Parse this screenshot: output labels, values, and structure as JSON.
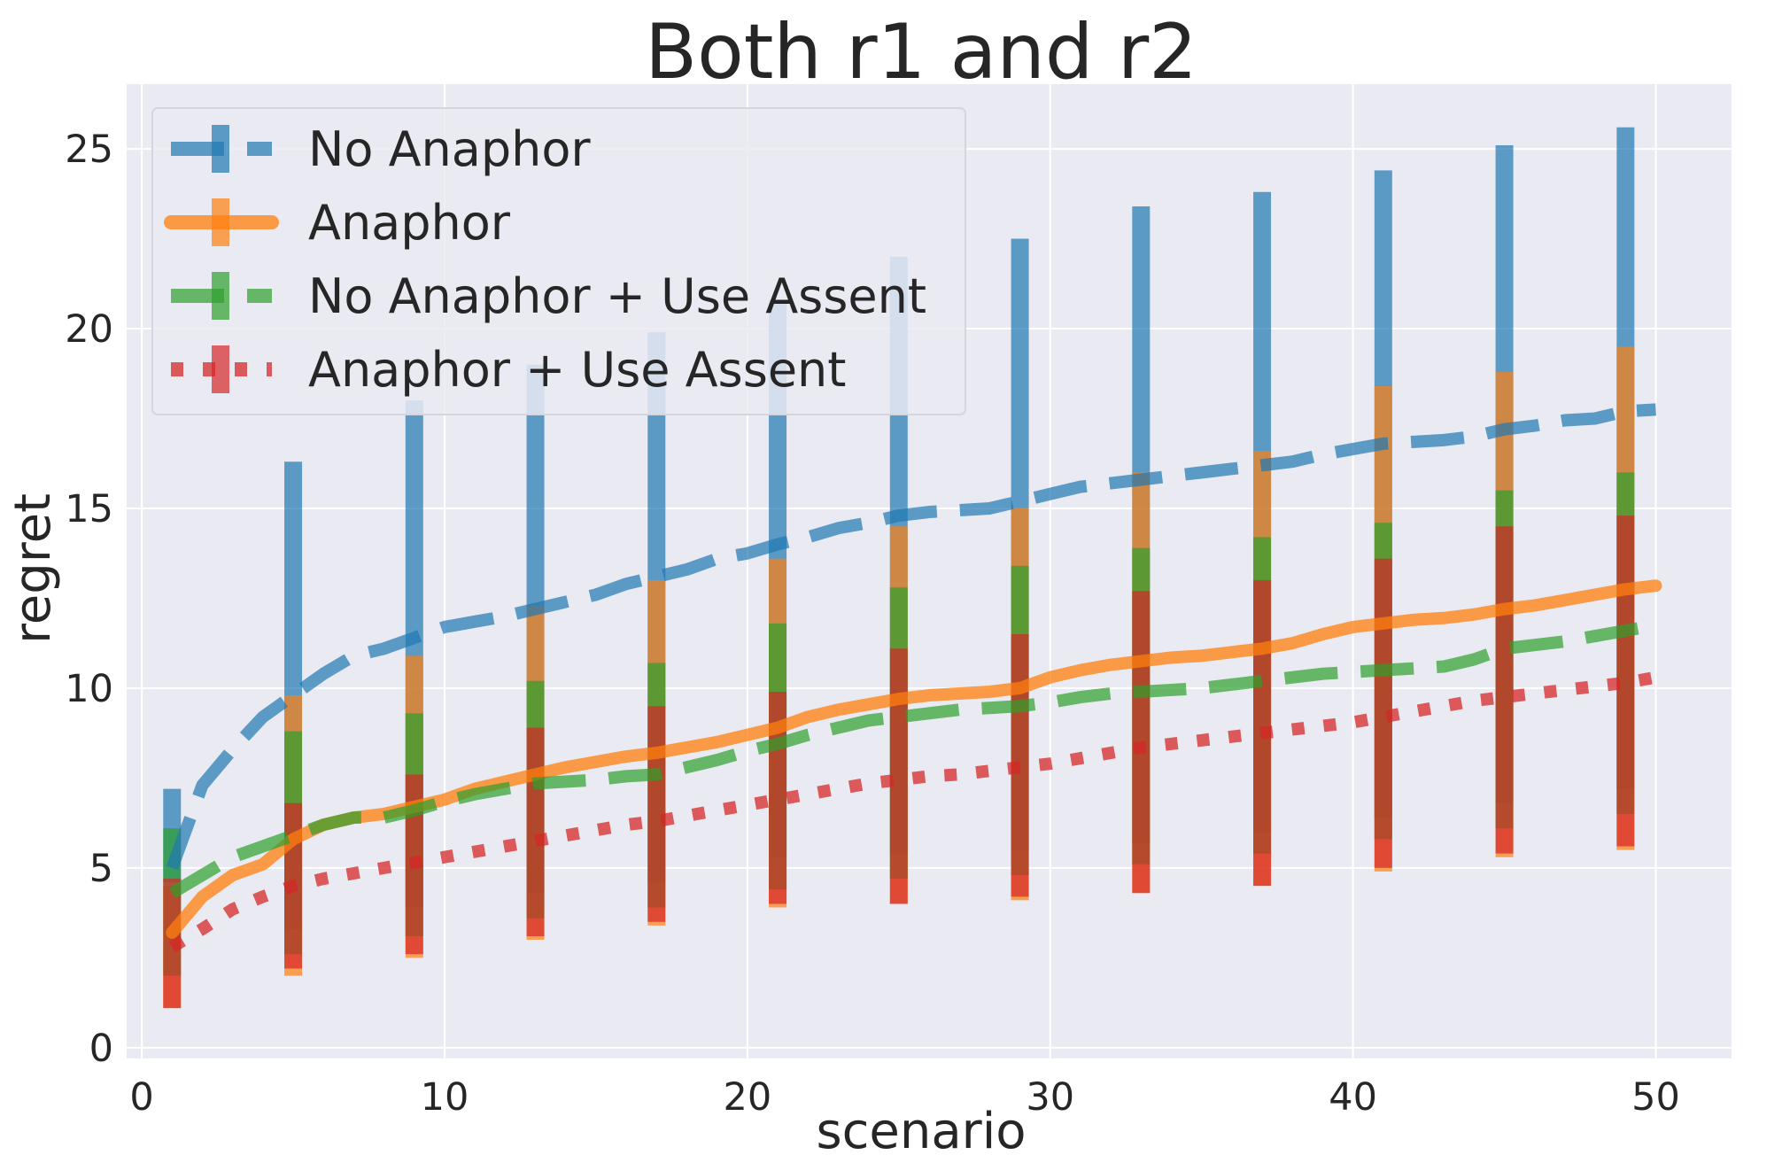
{
  "chart_data": {
    "type": "line",
    "title": "Both r1 and r2",
    "xlabel": "scenario",
    "ylabel": "regret",
    "xlim": [
      -0.5,
      52.5
    ],
    "ylim": [
      -0.3,
      26.8
    ],
    "xticks": [
      0,
      10,
      20,
      30,
      40,
      50
    ],
    "yticks": [
      0,
      5,
      10,
      15,
      20,
      25
    ],
    "grid": true,
    "legend_position": "top-left",
    "series": [
      {
        "name": "No Anaphor",
        "color": "#1f77b4",
        "linestyle": "dashed",
        "x": [
          1,
          2,
          3,
          4,
          5,
          6,
          7,
          8,
          9,
          10,
          11,
          12,
          13,
          14,
          15,
          16,
          17,
          18,
          19,
          20,
          21,
          22,
          23,
          24,
          25,
          26,
          27,
          28,
          29,
          30,
          31,
          32,
          33,
          34,
          35,
          36,
          37,
          38,
          39,
          40,
          41,
          42,
          43,
          44,
          45,
          46,
          47,
          48,
          49,
          50
        ],
        "y": [
          5.0,
          7.3,
          8.3,
          9.2,
          9.8,
          10.4,
          10.9,
          11.1,
          11.4,
          11.7,
          11.85,
          12.0,
          12.2,
          12.4,
          12.6,
          12.9,
          13.1,
          13.3,
          13.6,
          13.75,
          14.0,
          14.2,
          14.45,
          14.6,
          14.8,
          14.9,
          14.95,
          15.0,
          15.2,
          15.4,
          15.6,
          15.7,
          15.8,
          15.9,
          16.0,
          16.1,
          16.2,
          16.3,
          16.5,
          16.65,
          16.8,
          16.85,
          16.9,
          17.0,
          17.2,
          17.3,
          17.45,
          17.5,
          17.7,
          17.75
        ],
        "error_x": [
          1,
          5,
          9,
          13,
          17,
          21,
          25,
          29,
          33,
          37,
          41,
          45,
          49
        ],
        "error_low": [
          4.6,
          3.3,
          3.9,
          4.3,
          4.6,
          5.3,
          5.4,
          5.5,
          5.7,
          6.0,
          6.4,
          6.8,
          7.2
        ],
        "error_high": [
          7.2,
          16.3,
          18.0,
          19.0,
          19.9,
          20.8,
          22.0,
          22.5,
          23.4,
          23.8,
          24.4,
          25.1,
          25.6
        ]
      },
      {
        "name": "Anaphor",
        "color": "#ff7f0e",
        "linestyle": "solid",
        "x": [
          1,
          2,
          3,
          4,
          5,
          6,
          7,
          8,
          9,
          10,
          11,
          12,
          13,
          14,
          15,
          16,
          17,
          18,
          19,
          20,
          21,
          22,
          23,
          24,
          25,
          26,
          27,
          28,
          29,
          30,
          31,
          32,
          33,
          34,
          35,
          36,
          37,
          38,
          39,
          40,
          41,
          42,
          43,
          44,
          45,
          46,
          47,
          48,
          49,
          50
        ],
        "y": [
          3.2,
          4.2,
          4.8,
          5.1,
          5.8,
          6.2,
          6.4,
          6.5,
          6.7,
          6.9,
          7.2,
          7.4,
          7.6,
          7.8,
          7.95,
          8.1,
          8.2,
          8.35,
          8.5,
          8.7,
          8.9,
          9.2,
          9.4,
          9.55,
          9.7,
          9.8,
          9.85,
          9.9,
          10.0,
          10.3,
          10.5,
          10.65,
          10.75,
          10.85,
          10.9,
          11.0,
          11.1,
          11.25,
          11.5,
          11.7,
          11.8,
          11.9,
          11.95,
          12.05,
          12.2,
          12.3,
          12.45,
          12.6,
          12.75,
          12.85
        ],
        "error_x": [
          1,
          5,
          9,
          13,
          17,
          21,
          25,
          29,
          33,
          37,
          41,
          45,
          49
        ],
        "error_low": [
          1.1,
          2.0,
          2.5,
          3.0,
          3.4,
          3.9,
          4.0,
          4.1,
          4.3,
          4.5,
          4.9,
          5.3,
          5.5
        ],
        "error_high": [
          4.5,
          9.8,
          10.9,
          12.3,
          13.0,
          13.6,
          14.5,
          15.0,
          16.0,
          16.6,
          18.4,
          18.8,
          19.5
        ]
      },
      {
        "name": "No Anaphor + Use Assent",
        "color": "#2ca02c",
        "linestyle": "dashed",
        "x": [
          1,
          2,
          3,
          4,
          5,
          6,
          7,
          8,
          9,
          10,
          11,
          12,
          13,
          14,
          15,
          16,
          17,
          18,
          19,
          20,
          21,
          22,
          23,
          24,
          25,
          26,
          27,
          28,
          29,
          30,
          31,
          32,
          33,
          34,
          35,
          36,
          37,
          38,
          39,
          40,
          41,
          42,
          43,
          44,
          45,
          46,
          47,
          48,
          49,
          50
        ],
        "y": [
          4.3,
          4.8,
          5.3,
          5.6,
          5.9,
          6.2,
          6.4,
          6.4,
          6.6,
          6.85,
          7.05,
          7.2,
          7.35,
          7.4,
          7.45,
          7.55,
          7.6,
          7.8,
          8.0,
          8.25,
          8.45,
          8.7,
          8.9,
          9.1,
          9.2,
          9.3,
          9.4,
          9.45,
          9.5,
          9.6,
          9.75,
          9.85,
          9.9,
          9.95,
          10.0,
          10.1,
          10.2,
          10.3,
          10.4,
          10.45,
          10.5,
          10.55,
          10.6,
          10.8,
          11.1,
          11.2,
          11.3,
          11.45,
          11.6,
          11.75
        ],
        "error_x": [
          1,
          5,
          9,
          13,
          17,
          21,
          25,
          29,
          33,
          37,
          41,
          45,
          49
        ],
        "error_low": [
          2.0,
          2.6,
          3.1,
          3.6,
          3.9,
          4.4,
          4.7,
          4.8,
          5.1,
          5.4,
          5.8,
          6.1,
          6.5
        ],
        "error_high": [
          6.1,
          8.8,
          9.3,
          10.2,
          10.7,
          11.8,
          12.8,
          13.4,
          13.9,
          14.2,
          14.6,
          15.5,
          16.0
        ]
      },
      {
        "name": "Anaphor + Use Assent",
        "color": "#d62728",
        "linestyle": "dotted",
        "x": [
          1,
          2,
          3,
          4,
          5,
          6,
          7,
          8,
          9,
          10,
          11,
          12,
          13,
          14,
          15,
          16,
          17,
          18,
          19,
          20,
          21,
          22,
          23,
          24,
          25,
          26,
          27,
          28,
          29,
          30,
          31,
          32,
          33,
          34,
          35,
          36,
          37,
          38,
          39,
          40,
          41,
          42,
          43,
          44,
          45,
          46,
          47,
          48,
          49,
          50
        ],
        "y": [
          2.8,
          3.3,
          3.85,
          4.2,
          4.5,
          4.7,
          4.85,
          5.0,
          5.15,
          5.3,
          5.45,
          5.6,
          5.75,
          5.9,
          6.05,
          6.2,
          6.3,
          6.45,
          6.6,
          6.75,
          6.9,
          7.05,
          7.2,
          7.35,
          7.45,
          7.55,
          7.6,
          7.7,
          7.8,
          7.9,
          8.05,
          8.2,
          8.35,
          8.45,
          8.55,
          8.65,
          8.75,
          8.85,
          8.95,
          9.05,
          9.2,
          9.35,
          9.5,
          9.65,
          9.75,
          9.85,
          9.95,
          10.05,
          10.15,
          10.3
        ],
        "error_x": [
          1,
          5,
          9,
          13,
          17,
          21,
          25,
          29,
          33,
          37,
          41,
          45,
          49
        ],
        "error_low": [
          1.1,
          2.2,
          2.6,
          3.1,
          3.5,
          4.0,
          4.0,
          4.2,
          4.3,
          4.5,
          5.0,
          5.4,
          5.6
        ],
        "error_high": [
          4.7,
          6.8,
          7.6,
          8.9,
          9.5,
          9.9,
          11.1,
          11.5,
          12.7,
          13.0,
          13.6,
          14.5,
          14.8
        ]
      }
    ]
  }
}
